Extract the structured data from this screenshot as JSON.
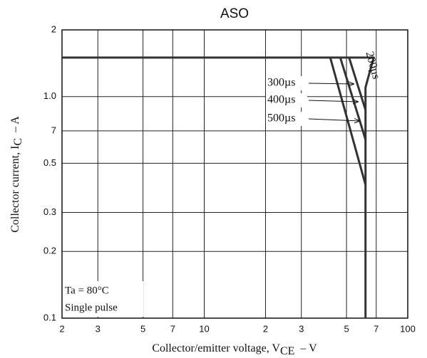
{
  "chart_data": {
    "type": "line",
    "title": "ASO",
    "xlabel": {
      "text": "Collector/emitter voltage, V",
      "sub": "CE",
      "unit": "–  V"
    },
    "ylabel": {
      "text": "Collector current, I",
      "sub": "C",
      "unit": "–  A"
    },
    "xscale": "log",
    "yscale": "log",
    "grid": true,
    "xlim": [
      2,
      100
    ],
    "ylim": [
      0.1,
      2
    ],
    "xticks": [
      2,
      3,
      5,
      7,
      10,
      {
        "value": 20,
        "label": "2"
      },
      {
        "value": 30,
        "label": "3"
      },
      {
        "value": 50,
        "label": "5"
      },
      {
        "value": 70,
        "label": "7"
      },
      100
    ],
    "yticks": [
      0.1,
      0.2,
      0.3,
      0.5,
      {
        "value": 0.7,
        "label": "7"
      },
      {
        "value": 1,
        "label": "1.0"
      },
      2
    ],
    "series": [
      {
        "name": "200µs",
        "color": "#333333",
        "x": [
          2,
          68,
          62,
          62
        ],
        "values": [
          1.5,
          1.5,
          1.1,
          0.1
        ]
      },
      {
        "name": "300µs",
        "color": "#333333",
        "x": [
          51.5,
          62
        ],
        "values": [
          1.5,
          0.87
        ]
      },
      {
        "name": "400µs",
        "color": "#333333",
        "x": [
          46.6,
          62
        ],
        "values": [
          1.5,
          0.64
        ]
      },
      {
        "name": "500µs",
        "color": "#333333",
        "x": [
          41.6,
          62
        ],
        "values": [
          1.5,
          0.4
        ]
      }
    ],
    "annotations": [
      "Ta = 80°C",
      "Single pulse"
    ]
  }
}
